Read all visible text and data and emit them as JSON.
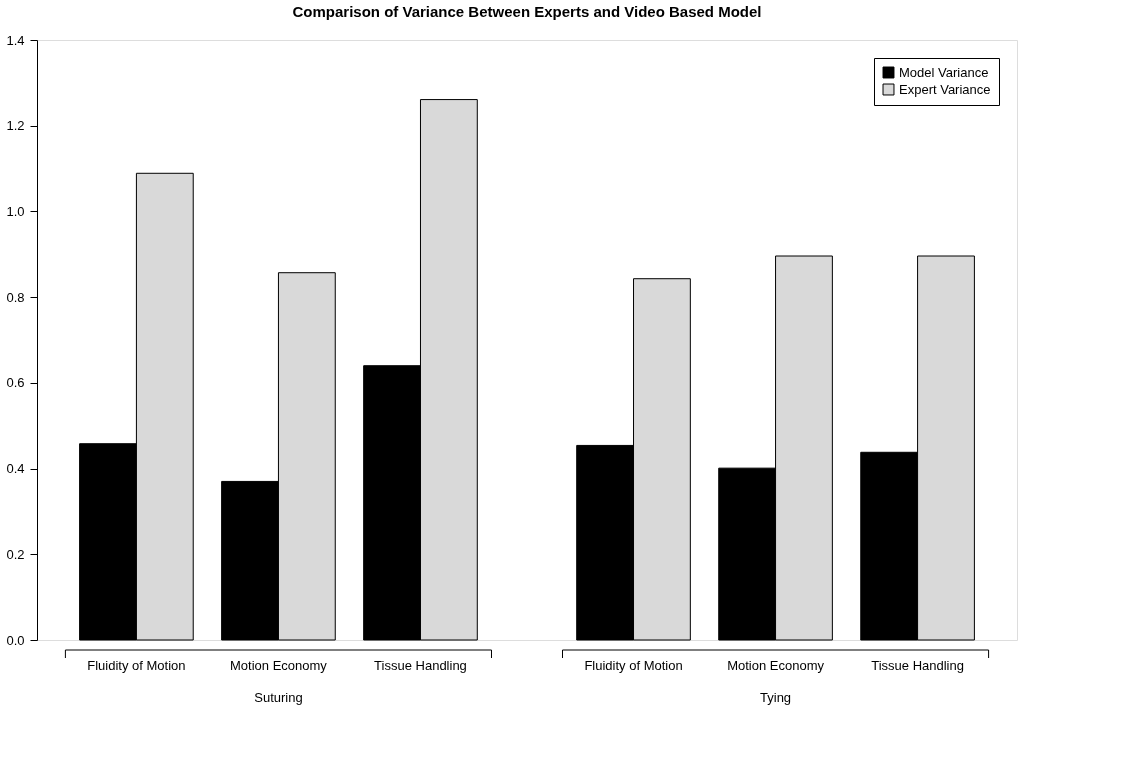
{
  "chart_data": {
    "type": "bar",
    "title": "Comparison of Variance Between Experts and Video Based Model",
    "categories": [
      "Fluidity of Motion",
      "Motion Economy",
      "Tissue Handling",
      "Fluidity of Motion",
      "Motion Economy",
      "Tissue Handling"
    ],
    "series": [
      {
        "name": "Model Variance",
        "color": "#000000",
        "values": [
          0.458,
          0.37,
          0.64,
          0.454,
          0.401,
          0.438
        ]
      },
      {
        "name": "Expert Variance",
        "color": "#d9d9d9",
        "values": [
          1.089,
          0.857,
          1.261,
          0.843,
          0.896,
          0.896
        ]
      }
    ],
    "annotations": [
      "Suturing",
      "Tying"
    ],
    "ylim": [
      0,
      1.4
    ],
    "yticks": [
      {
        "value": 0,
        "label": "0.0"
      },
      0.2,
      0.4,
      0.6,
      0.8,
      {
        "value": 1,
        "label": "1.0"
      },
      1.2,
      1.4
    ],
    "grid": false,
    "legend": "top right"
  }
}
